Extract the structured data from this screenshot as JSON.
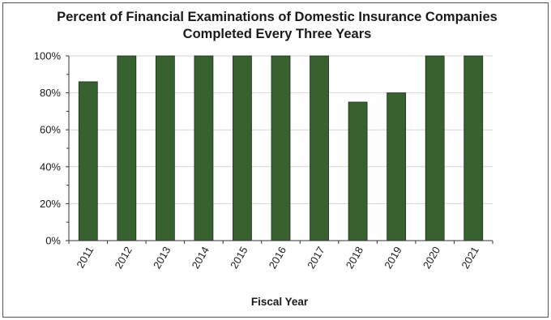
{
  "chart_data": {
    "type": "bar",
    "title_lines": [
      "Percent of Financial Examinations of Domestic Insurance Companies",
      "Completed Every Three Years"
    ],
    "xlabel": "Fiscal Year",
    "ylabel": "",
    "categories": [
      "2011",
      "2012",
      "2013",
      "2014",
      "2015",
      "2016",
      "2017",
      "2018",
      "2019",
      "2020",
      "2021"
    ],
    "values": [
      86,
      100,
      100,
      100,
      100,
      100,
      100,
      75,
      80,
      100,
      100
    ],
    "value_unit": "%",
    "ylim": [
      0,
      100
    ],
    "yticks": [
      0,
      20,
      40,
      60,
      80,
      100
    ],
    "ytick_labels": [
      "0%",
      "20%",
      "40%",
      "60%",
      "80%",
      "100%"
    ],
    "grid": true,
    "legend": "none",
    "colors": {
      "bar_fill": "#37612f",
      "bar_stroke": "#1c2e18",
      "grid": "#d6d6d6",
      "axis": "#333333"
    }
  }
}
